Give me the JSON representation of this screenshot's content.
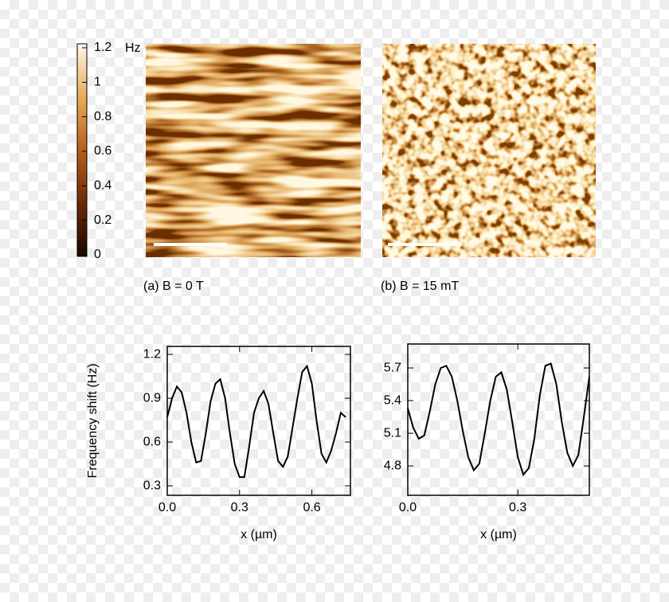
{
  "colorbar": {
    "lim": [
      0,
      1.2
    ],
    "ticks": [
      0,
      0.2,
      0.4,
      0.6,
      0.8,
      1,
      1.2
    ],
    "unit": "Hz"
  },
  "images": [
    {
      "caption": "(a) B = 0 T"
    },
    {
      "caption": "(b) B = 15 mT"
    }
  ],
  "chart_data": [
    {
      "type": "line",
      "ylabel": "Frequency shift (Hz)",
      "xlabel": "x (µm)",
      "color": "#000000",
      "x": [
        0,
        0.02,
        0.04,
        0.06,
        0.08,
        0.1,
        0.12,
        0.14,
        0.16,
        0.18,
        0.2,
        0.22,
        0.24,
        0.26,
        0.28,
        0.3,
        0.32,
        0.34,
        0.36,
        0.38,
        0.4,
        0.42,
        0.44,
        0.46,
        0.48,
        0.5,
        0.52,
        0.54,
        0.56,
        0.58,
        0.6,
        0.62,
        0.64,
        0.66,
        0.68,
        0.7,
        0.72,
        0.74
      ],
      "values": [
        0.77,
        0.9,
        0.98,
        0.94,
        0.8,
        0.6,
        0.46,
        0.47,
        0.66,
        0.88,
        1.0,
        1.03,
        0.9,
        0.66,
        0.45,
        0.36,
        0.36,
        0.57,
        0.8,
        0.9,
        0.95,
        0.86,
        0.66,
        0.47,
        0.43,
        0.5,
        0.7,
        0.9,
        1.08,
        1.12,
        1.0,
        0.74,
        0.52,
        0.46,
        0.54,
        0.66,
        0.8,
        0.77
      ],
      "xlim": [
        0,
        0.76
      ],
      "ylim": [
        0.235,
        1.255
      ],
      "xticks": [
        {
          "value": 0,
          "label": "0.0"
        },
        0.3,
        0.6
      ],
      "yticks": [
        0.3,
        0.6,
        0.9,
        1.2
      ]
    },
    {
      "type": "line",
      "xlabel": "x (µm)",
      "color": "#000000",
      "x": [
        0,
        0.015,
        0.03,
        0.045,
        0.06,
        0.075,
        0.09,
        0.105,
        0.12,
        0.135,
        0.15,
        0.165,
        0.18,
        0.195,
        0.21,
        0.225,
        0.24,
        0.255,
        0.27,
        0.285,
        0.3,
        0.315,
        0.33,
        0.345,
        0.36,
        0.375,
        0.39,
        0.405,
        0.42,
        0.435,
        0.45,
        0.465,
        0.48,
        0.495
      ],
      "values": [
        5.33,
        5.15,
        5.05,
        5.08,
        5.3,
        5.55,
        5.7,
        5.72,
        5.62,
        5.4,
        5.12,
        4.88,
        4.76,
        4.82,
        5.1,
        5.4,
        5.62,
        5.66,
        5.5,
        5.2,
        4.88,
        4.72,
        4.78,
        5.05,
        5.45,
        5.72,
        5.74,
        5.55,
        5.2,
        4.92,
        4.8,
        4.9,
        5.25,
        5.62
      ],
      "xlim": [
        0,
        0.495
      ],
      "ylim": [
        4.53,
        5.92
      ],
      "xticks": [
        {
          "value": 0,
          "label": "0.0"
        },
        0.3
      ],
      "yticks": [
        4.8,
        5.1,
        5.4,
        5.7
      ]
    }
  ]
}
